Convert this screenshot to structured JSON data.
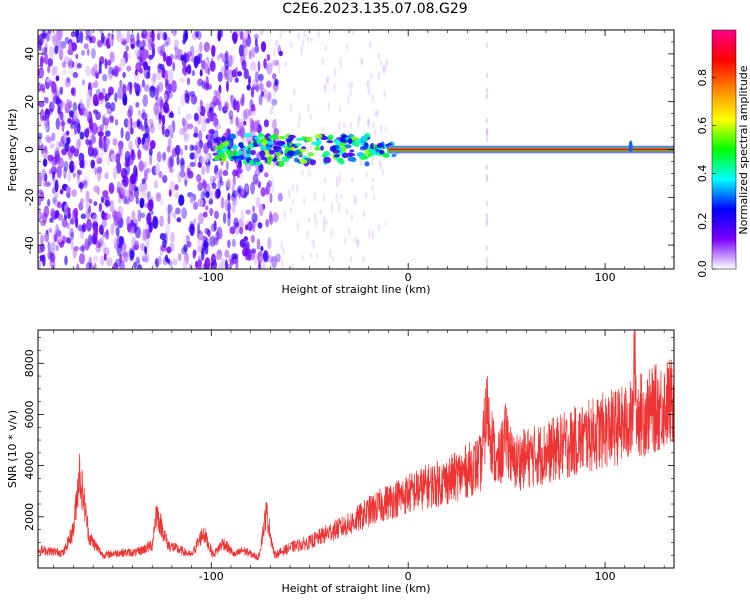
{
  "title": "C2E6.2023.135.07.08.G29",
  "chart_data": [
    {
      "type": "heatmap",
      "xlabel": "Height of straight line (km)",
      "ylabel": "Frequency (Hz)",
      "xlim": [
        -188,
        135
      ],
      "ylim": [
        -50,
        50
      ],
      "xticks": [
        -100,
        0,
        100
      ],
      "yticks": [
        -40,
        -20,
        0,
        20,
        40
      ],
      "colorbar": {
        "label": "Normalized spectral amplitude",
        "range": [
          0,
          1
        ],
        "ticks": [
          "0.0",
          "0.2",
          "0.4",
          "0.6",
          "0.8"
        ],
        "colormap": [
          "#ffffff",
          "#7a00ff",
          "#0000ff",
          "#00ffff",
          "#00ff00",
          "#ffff00",
          "#ff8800",
          "#ff0000",
          "#ff0088"
        ]
      },
      "signal_line": {
        "start_km": -75,
        "end_km": 135,
        "frequency_hz": 0,
        "amplitude": 0.9
      },
      "noise_region_km": [
        -188,
        -70
      ]
    },
    {
      "type": "line",
      "xlabel": "Height of straight line (km)",
      "ylabel": "SNR (10 * v/v)",
      "xlim": [
        -188,
        135
      ],
      "ylim": [
        0,
        9300
      ],
      "xticks": [
        -100,
        0,
        100
      ],
      "yticks": [
        2000,
        4000,
        6000,
        8000
      ],
      "color": "#ee3333",
      "envelope": {
        "x": [
          -188,
          -175,
          -170,
          -167,
          -162,
          -155,
          -147,
          -138,
          -130,
          -128,
          -122,
          -110,
          -104,
          -99,
          -94,
          -88,
          -84,
          -76,
          -72,
          -68,
          -60,
          -50,
          -40,
          -30,
          -20,
          -10,
          0,
          10,
          20,
          30,
          37,
          40,
          45,
          50,
          53,
          60,
          70,
          80,
          90,
          100,
          110,
          114,
          115,
          116,
          120,
          125,
          130,
          135
        ],
        "y": [
          700,
          600,
          1500,
          3800,
          1200,
          500,
          600,
          600,
          900,
          2200,
          900,
          500,
          1400,
          500,
          1000,
          500,
          700,
          400,
          2200,
          500,
          800,
          1000,
          1400,
          1700,
          2200,
          2600,
          2900,
          3200,
          3400,
          3800,
          4100,
          6200,
          3900,
          5200,
          4100,
          4300,
          4500,
          4800,
          5100,
          5400,
          5600,
          5800,
          9000,
          6000,
          6000,
          6200,
          6400,
          6500
        ]
      },
      "noise_amplitude_frac": 0.28
    }
  ]
}
